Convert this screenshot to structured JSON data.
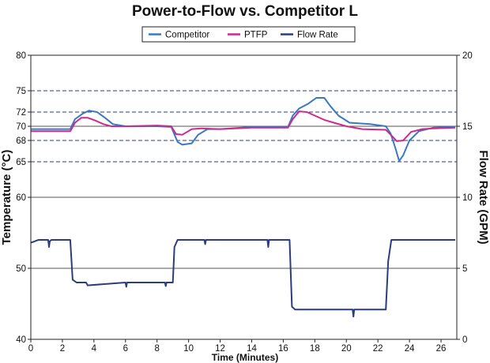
{
  "chart_data": {
    "type": "line",
    "title": "Power-to-Flow vs. Competitor L",
    "xlabel": "Time (Minutes)",
    "ylabel_left": "Temperature (°C)",
    "ylabel_right": "Flow Rate (GPM)",
    "xlim": [
      0,
      27
    ],
    "ylim_left": [
      40,
      80
    ],
    "ylim_right": [
      0,
      20
    ],
    "x_ticks": [
      "0",
      "2",
      "4",
      "6",
      "8",
      "10",
      "12",
      "14",
      "16",
      "18",
      "20",
      "22",
      "24",
      "26"
    ],
    "y_left_ticks": [
      "40",
      "50",
      "60",
      "65",
      "68",
      "70",
      "72",
      "75",
      "80"
    ],
    "y_right_ticks": [
      "0",
      "5",
      "10",
      "15",
      "20"
    ],
    "solid_gridlines_left": [
      50,
      60,
      70
    ],
    "dashed_gridlines_left": [
      65,
      68,
      72,
      75
    ],
    "legend_position": "top-center",
    "series": [
      {
        "name": "Competitor",
        "axis": "left",
        "color": "#3a78c2",
        "x": [
          0,
          2.5,
          2.8,
          3.3,
          3.7,
          4.2,
          4.7,
          5.2,
          6,
          8,
          8.9,
          9.3,
          9.6,
          10.2,
          10.6,
          11.2,
          12,
          14,
          16.3,
          16.6,
          17.0,
          17.6,
          18.1,
          18.6,
          19.0,
          19.5,
          20.2,
          21.5,
          22.5,
          22.8,
          23.1,
          23.35,
          23.6,
          24.0,
          24.6,
          25.5,
          26.9
        ],
        "y": [
          69.6,
          69.6,
          71.0,
          71.8,
          72.2,
          72.0,
          71.2,
          70.3,
          70.0,
          70.0,
          69.9,
          67.8,
          67.4,
          67.6,
          68.8,
          69.6,
          69.6,
          69.9,
          69.9,
          71.5,
          72.5,
          73.2,
          74.0,
          74.0,
          72.8,
          71.5,
          70.5,
          70.3,
          70.0,
          69.0,
          67.0,
          65.1,
          65.9,
          68.0,
          69.3,
          69.8,
          69.9
        ]
      },
      {
        "name": "PTFP",
        "axis": "left",
        "color": "#cc2b8b",
        "x": [
          0,
          2.5,
          2.8,
          3.2,
          3.6,
          4.1,
          4.6,
          5.1,
          6,
          8,
          8.9,
          9.2,
          9.6,
          10.2,
          10.8,
          12,
          14,
          16.3,
          16.6,
          17.0,
          17.5,
          18.0,
          18.6,
          19.2,
          20,
          21,
          22.5,
          22.9,
          23.2,
          23.6,
          24.1,
          24.8,
          25.5,
          26.9
        ],
        "y": [
          69.3,
          69.3,
          70.5,
          71.2,
          71.2,
          70.8,
          70.3,
          70.0,
          70.0,
          70.1,
          70.0,
          68.9,
          68.8,
          69.6,
          69.7,
          69.6,
          69.8,
          69.8,
          71.0,
          72.1,
          72.0,
          71.5,
          70.9,
          70.5,
          70.0,
          69.6,
          69.5,
          68.6,
          67.9,
          68.0,
          69.2,
          69.6,
          69.7,
          69.8
        ]
      },
      {
        "name": "Flow Rate",
        "axis": "right",
        "color": "#2b3d7a",
        "x": [
          0,
          0.25,
          0.35,
          0.5,
          1.1,
          1.15,
          1.2,
          1.3,
          2.5,
          2.65,
          2.9,
          3.5,
          3.6,
          6.0,
          6.05,
          6.1,
          8.5,
          8.55,
          8.6,
          9.0,
          9.1,
          9.3,
          11.0,
          11.05,
          11.1,
          15.0,
          15.05,
          15.1,
          16.4,
          16.55,
          16.75,
          20.4,
          20.45,
          20.5,
          22.5,
          22.65,
          22.85,
          26.9
        ],
        "y": [
          6.8,
          6.9,
          6.95,
          7.0,
          7.0,
          6.5,
          6.9,
          7.0,
          7.0,
          4.2,
          4.0,
          4.0,
          3.8,
          4.0,
          3.7,
          4.0,
          4.0,
          3.75,
          4.0,
          4.0,
          6.5,
          7.0,
          7.0,
          6.7,
          7.0,
          7.0,
          6.5,
          7.0,
          7.0,
          2.3,
          2.1,
          2.1,
          1.6,
          2.1,
          2.1,
          5.5,
          7.0,
          7.0
        ]
      }
    ]
  }
}
